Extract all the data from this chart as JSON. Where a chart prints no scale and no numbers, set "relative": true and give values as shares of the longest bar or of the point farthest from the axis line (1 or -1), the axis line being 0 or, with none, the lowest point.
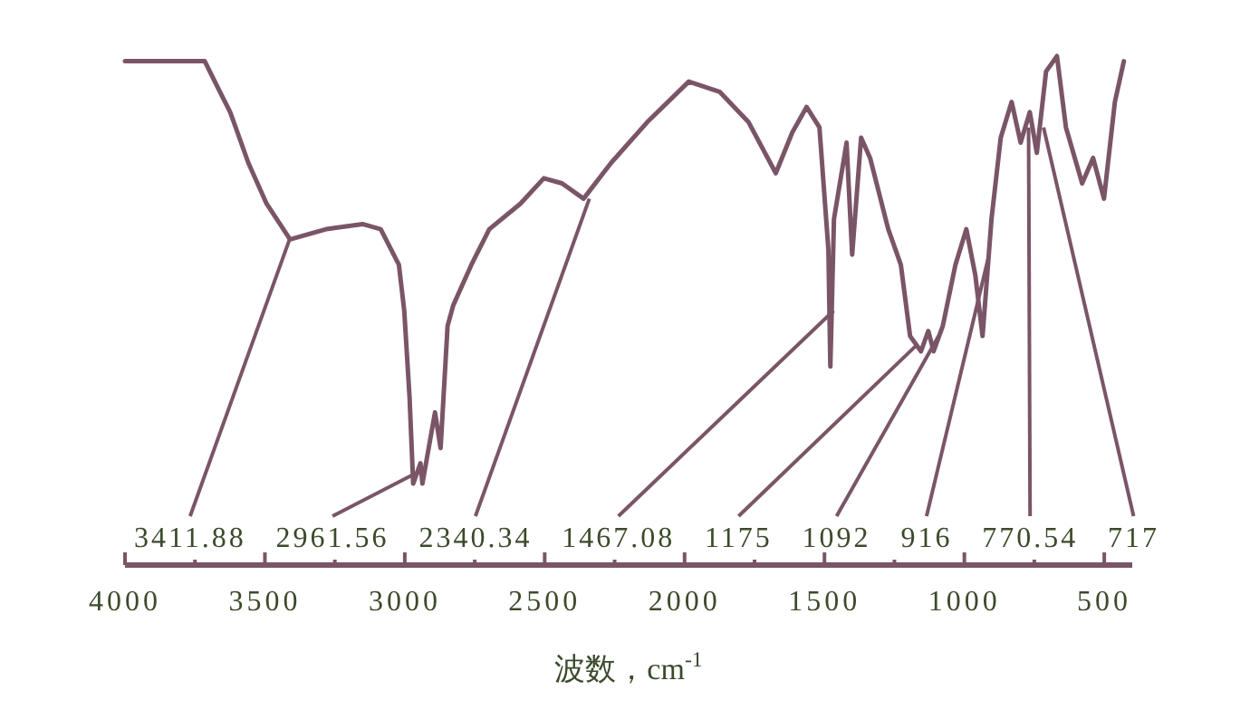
{
  "chart_data": {
    "type": "line",
    "relative": true,
    "color": "#7a5567",
    "x": [
      4000,
      3844,
      3715,
      3670,
      3624,
      3559,
      3494,
      3410,
      3281,
      3151,
      3086,
      3021,
      3002,
      2983,
      2970,
      2944,
      2937,
      2892,
      2872,
      2847,
      2827,
      2762,
      2698,
      2587,
      2503,
      2438,
      2361,
      2263,
      2134,
      1985,
      1875,
      1771,
      1674,
      1615,
      1564,
      1518,
      1486,
      1479,
      1466,
      1421,
      1401,
      1369,
      1337,
      1272,
      1227,
      1194,
      1155,
      1129,
      1110,
      1077,
      1032,
      993,
      961,
      935,
      903,
      870,
      831,
      799,
      766,
      741,
      708,
      669,
      637,
      579,
      540,
      501,
      462,
      430
    ],
    "values": [
      0.99,
      0.99,
      0.99,
      0.94,
      0.89,
      0.79,
      0.71,
      0.64,
      0.66,
      0.67,
      0.66,
      0.59,
      0.5,
      0.33,
      0.16,
      0.2,
      0.16,
      0.3,
      0.23,
      0.47,
      0.51,
      0.59,
      0.66,
      0.71,
      0.76,
      0.75,
      0.72,
      0.79,
      0.87,
      0.95,
      0.93,
      0.87,
      0.77,
      0.85,
      0.9,
      0.86,
      0.62,
      0.39,
      0.68,
      0.83,
      0.61,
      0.84,
      0.8,
      0.66,
      0.59,
      0.45,
      0.42,
      0.46,
      0.42,
      0.47,
      0.59,
      0.66,
      0.57,
      0.45,
      0.68,
      0.84,
      0.91,
      0.83,
      0.89,
      0.81,
      0.97,
      1.0,
      0.86,
      0.75,
      0.8,
      0.72,
      0.91,
      0.99
    ],
    "xlim": [
      4000,
      400
    ],
    "xticks": [
      4000,
      {
        "value": 3750,
        "label": null
      },
      3500,
      {
        "value": 3250,
        "label": null
      },
      3000,
      {
        "value": 2750,
        "label": null
      },
      2500,
      {
        "value": 2250,
        "label": null
      },
      2000,
      {
        "value": 1750,
        "label": null
      },
      1500,
      {
        "value": 1250,
        "label": null
      },
      1000,
      {
        "value": 750,
        "label": null
      },
      500
    ],
    "xlabel": "波数，cm$^{-1}$",
    "annotations": [
      {
        "text": "3411.88",
        "x": 3411.88,
        "y": 0.64
      },
      {
        "text": "2961.56",
        "x": 2961.56,
        "y": 0.18
      },
      {
        "text": "2340.34",
        "x": 2340.34,
        "y": 0.72
      },
      {
        "text": "1467.08",
        "x": 1467.08,
        "y": 0.5
      },
      {
        "text": "1175",
        "x": 1175,
        "y": 0.43
      },
      {
        "text": "1092",
        "x": 1092,
        "y": 0.45
      },
      {
        "text": "916",
        "x": 916,
        "y": 0.6
      },
      {
        "text": "770.54",
        "x": 770.54,
        "y": 0.86
      },
      {
        "text": "717",
        "x": 717,
        "y": 0.86
      }
    ]
  }
}
